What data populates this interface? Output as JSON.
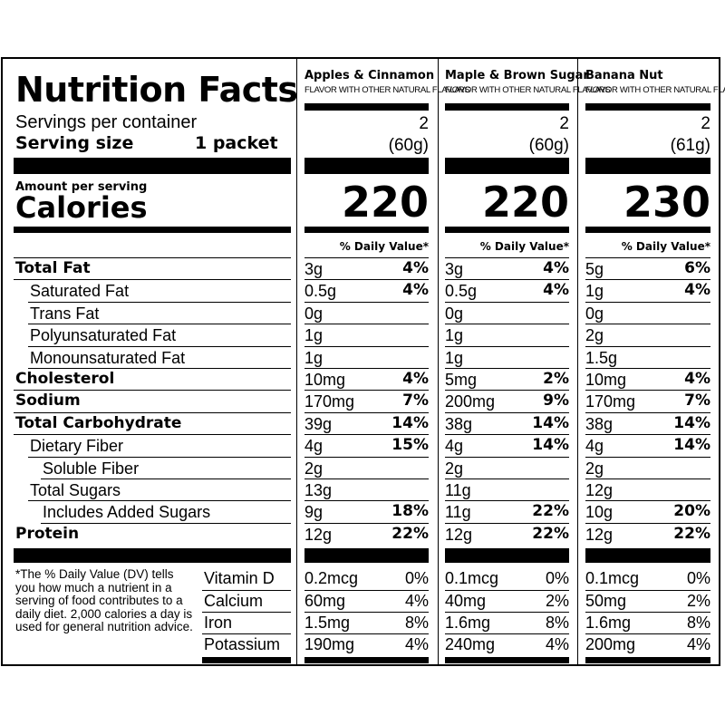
{
  "title": "Nutrition Facts",
  "servings_label": "Servings per container",
  "serving_size_label": "Serving size",
  "serving_size_value": "1 packet",
  "amount_per_serving": "Amount per serving",
  "calories_label": "Calories",
  "dv_header": "% Daily Value*",
  "columns": [
    {
      "name": "Apples & Cinnamon",
      "sub": "FLAVOR WITH OTHER NATURAL FLAVORS",
      "servings": "2",
      "grams": "(60g)",
      "calories": "220"
    },
    {
      "name": "Maple & Brown Sugar",
      "sub": "FLAVOR WITH OTHER NATURAL FLAVORS",
      "servings": "2",
      "grams": "(60g)",
      "calories": "220"
    },
    {
      "name": "Banana Nut",
      "sub": "FLAVOR WITH OTHER NATURAL FLAVORS",
      "servings": "2",
      "grams": "(61g)",
      "calories": "230"
    }
  ],
  "nutrients": [
    {
      "label": "Total Fat",
      "bold": true,
      "indent": 0,
      "values": [
        [
          "3g",
          "4%"
        ],
        [
          "3g",
          "4%"
        ],
        [
          "5g",
          "6%"
        ]
      ]
    },
    {
      "label": "Saturated Fat",
      "bold": false,
      "indent": 1,
      "values": [
        [
          "0.5g",
          "4%"
        ],
        [
          "0.5g",
          "4%"
        ],
        [
          "1g",
          "4%"
        ]
      ]
    },
    {
      "label": "Trans Fat",
      "bold": false,
      "indent": 1,
      "values": [
        [
          "0g",
          ""
        ],
        [
          "0g",
          ""
        ],
        [
          "0g",
          ""
        ]
      ]
    },
    {
      "label": "Polyunsaturated Fat",
      "bold": false,
      "indent": 1,
      "values": [
        [
          "1g",
          ""
        ],
        [
          "1g",
          ""
        ],
        [
          "2g",
          ""
        ]
      ]
    },
    {
      "label": "Monounsaturated Fat",
      "bold": false,
      "indent": 1,
      "values": [
        [
          "1g",
          ""
        ],
        [
          "1g",
          ""
        ],
        [
          "1.5g",
          ""
        ]
      ]
    },
    {
      "label": "Cholesterol",
      "bold": true,
      "indent": 0,
      "values": [
        [
          "10mg",
          "4%"
        ],
        [
          "5mg",
          "2%"
        ],
        [
          "10mg",
          "4%"
        ]
      ]
    },
    {
      "label": "Sodium",
      "bold": true,
      "indent": 0,
      "values": [
        [
          "170mg",
          "7%"
        ],
        [
          "200mg",
          "9%"
        ],
        [
          "170mg",
          "7%"
        ]
      ]
    },
    {
      "label": "Total Carbohydrate",
      "bold": true,
      "indent": 0,
      "values": [
        [
          "39g",
          "14%"
        ],
        [
          "38g",
          "14%"
        ],
        [
          "38g",
          "14%"
        ]
      ]
    },
    {
      "label": "Dietary Fiber",
      "bold": false,
      "indent": 1,
      "values": [
        [
          "4g",
          "15%"
        ],
        [
          "4g",
          "14%"
        ],
        [
          "4g",
          "14%"
        ]
      ]
    },
    {
      "label": "Soluble Fiber",
      "bold": false,
      "indent": 2,
      "values": [
        [
          "2g",
          ""
        ],
        [
          "2g",
          ""
        ],
        [
          "2g",
          ""
        ]
      ]
    },
    {
      "label": "Total Sugars",
      "bold": false,
      "indent": 1,
      "values": [
        [
          "13g",
          ""
        ],
        [
          "11g",
          ""
        ],
        [
          "12g",
          ""
        ]
      ]
    },
    {
      "label": "Includes Added Sugars",
      "bold": false,
      "indent": 2,
      "values": [
        [
          "9g",
          "18%"
        ],
        [
          "11g",
          "22%"
        ],
        [
          "10g",
          "20%"
        ]
      ]
    },
    {
      "label": "Protein",
      "bold": true,
      "indent": 0,
      "values": [
        [
          "12g",
          "22%"
        ],
        [
          "12g",
          "22%"
        ],
        [
          "12g",
          "22%"
        ]
      ]
    }
  ],
  "vitamins": [
    {
      "label": "Vitamin D",
      "values": [
        [
          "0.2mcg",
          "0%"
        ],
        [
          "0.1mcg",
          "0%"
        ],
        [
          "0.1mcg",
          "0%"
        ]
      ]
    },
    {
      "label": "Calcium",
      "values": [
        [
          "60mg",
          "4%"
        ],
        [
          "40mg",
          "2%"
        ],
        [
          "50mg",
          "2%"
        ]
      ]
    },
    {
      "label": "Iron",
      "values": [
        [
          "1.5mg",
          "8%"
        ],
        [
          "1.6mg",
          "8%"
        ],
        [
          "1.6mg",
          "8%"
        ]
      ]
    },
    {
      "label": "Potassium",
      "values": [
        [
          "190mg",
          "4%"
        ],
        [
          "240mg",
          "4%"
        ],
        [
          "200mg",
          "4%"
        ]
      ]
    }
  ],
  "footnote": "*The % Daily Value (DV) tells you how much a nutrient in a serving of food contributes to a daily diet. 2,000 calories a day is used for general nutrition advice."
}
